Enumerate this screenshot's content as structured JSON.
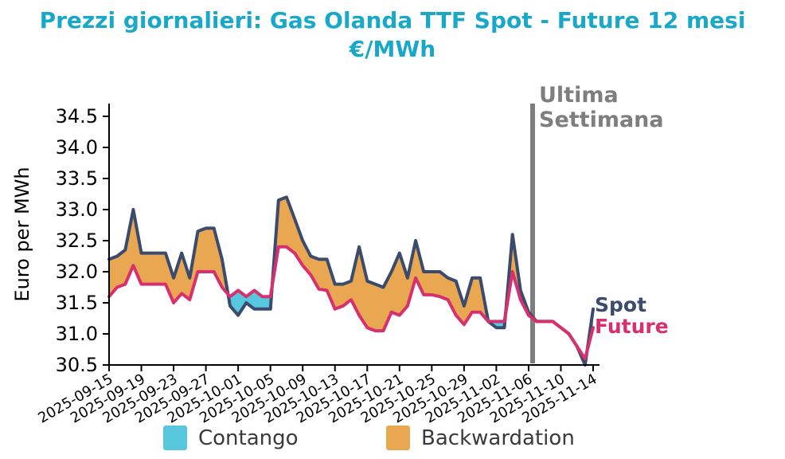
{
  "title": {
    "line1": "Prezzi giornalieri: Gas Olanda TTF Spot - Future 12 mesi",
    "line2": "€/MWh"
  },
  "colors": {
    "title": "#19A8C7",
    "annotation_gray": "#7E7E7E",
    "axis": "#000000",
    "legend_text": "#3A3A3A",
    "background": "#FFFFFF"
  },
  "chart_data": {
    "type": "line",
    "title": "Prezzi giornalieri: Gas Olanda TTF Spot - Future 12 mesi €/MWh",
    "ylabel": "Euro per MWh",
    "xlabel": "",
    "ylim": [
      30.5,
      34.5
    ],
    "yticks": [
      30.5,
      31.0,
      31.5,
      32.0,
      32.5,
      33.0,
      33.5,
      34.0,
      34.5
    ],
    "x_tick_step": 4,
    "x_tick_rotation": -30,
    "grid": false,
    "legend_position": "bottom",
    "x": [
      "2025-09-15",
      "2025-09-16",
      "2025-09-17",
      "2025-09-18",
      "2025-09-19",
      "2025-09-20",
      "2025-09-21",
      "2025-09-22",
      "2025-09-23",
      "2025-09-24",
      "2025-09-25",
      "2025-09-26",
      "2025-09-27",
      "2025-09-28",
      "2025-09-29",
      "2025-09-30",
      "2025-10-01",
      "2025-10-02",
      "2025-10-03",
      "2025-10-04",
      "2025-10-05",
      "2025-10-06",
      "2025-10-07",
      "2025-10-08",
      "2025-10-09",
      "2025-10-10",
      "2025-10-11",
      "2025-10-12",
      "2025-10-13",
      "2025-10-14",
      "2025-10-15",
      "2025-10-16",
      "2025-10-17",
      "2025-10-18",
      "2025-10-19",
      "2025-10-20",
      "2025-10-21",
      "2025-10-22",
      "2025-10-23",
      "2025-10-24",
      "2025-10-25",
      "2025-10-26",
      "2025-10-27",
      "2025-10-28",
      "2025-10-29",
      "2025-10-30",
      "2025-10-31",
      "2025-11-01",
      "2025-11-02",
      "2025-11-03",
      "2025-11-04",
      "2025-11-05",
      "2025-11-06",
      "2025-11-07",
      "2025-11-08",
      "2025-11-09",
      "2025-11-10",
      "2025-11-11",
      "2025-11-12",
      "2025-11-13",
      "2025-11-14"
    ],
    "series": [
      {
        "name": "Spot",
        "color": "#3B4B6E",
        "values": [
          32.2,
          32.25,
          32.35,
          33.0,
          32.3,
          32.3,
          32.3,
          32.3,
          31.9,
          32.3,
          31.9,
          32.65,
          32.7,
          32.7,
          32.2,
          31.45,
          31.3,
          31.5,
          31.4,
          31.4,
          31.4,
          33.15,
          33.2,
          32.85,
          32.5,
          32.25,
          32.2,
          32.2,
          31.8,
          31.8,
          31.85,
          32.4,
          31.85,
          31.8,
          31.75,
          32.0,
          32.3,
          31.9,
          32.5,
          32.0,
          32.0,
          32.0,
          31.9,
          31.85,
          31.45,
          31.9,
          31.9,
          31.2,
          31.1,
          31.1,
          32.6,
          31.7,
          31.35,
          31.2,
          31.2,
          31.2,
          31.1,
          31.0,
          30.8,
          30.5,
          31.4
        ]
      },
      {
        "name": "Future",
        "color": "#D7306F",
        "values": [
          31.6,
          31.75,
          31.8,
          32.1,
          31.8,
          31.8,
          31.8,
          31.8,
          31.5,
          31.65,
          31.55,
          32.0,
          32.0,
          32.0,
          31.75,
          31.6,
          31.7,
          31.6,
          31.7,
          31.6,
          31.6,
          32.4,
          32.4,
          32.3,
          32.1,
          31.95,
          31.72,
          31.7,
          31.4,
          31.45,
          31.55,
          31.3,
          31.1,
          31.05,
          31.05,
          31.35,
          31.3,
          31.45,
          31.9,
          31.63,
          31.63,
          31.6,
          31.55,
          31.3,
          31.15,
          31.35,
          31.35,
          31.2,
          31.2,
          31.2,
          32.0,
          31.55,
          31.3,
          31.2,
          31.2,
          31.2,
          31.1,
          31.0,
          30.8,
          30.6,
          31.1
        ]
      }
    ],
    "fills": [
      {
        "name": "Contango",
        "color": "#56C7DC",
        "condition": "future > spot"
      },
      {
        "name": "Backwardation",
        "color": "#E9A751",
        "condition": "spot > future"
      }
    ],
    "annotations": {
      "vline_date": "2025-11-07",
      "vline_label_line1": "Ultima",
      "vline_label_line2": "Settimana",
      "spot_end_label": "Spot",
      "future_end_label": "Future"
    }
  }
}
